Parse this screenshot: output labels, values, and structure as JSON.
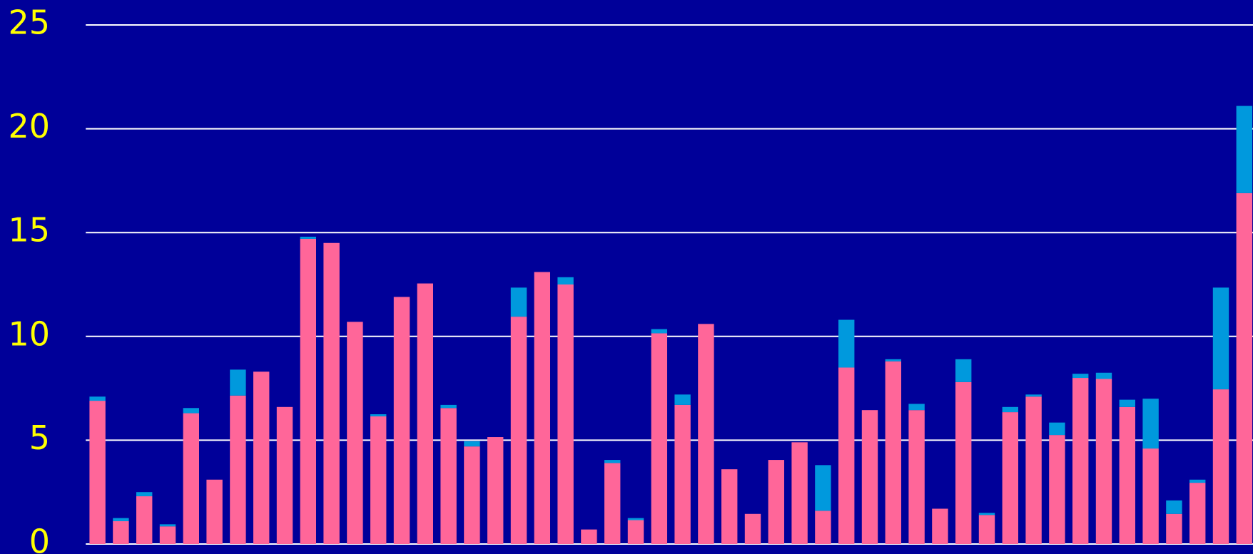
{
  "chart_data": {
    "type": "stacked_bar",
    "categories": [
      null,
      null,
      null,
      null,
      null,
      null,
      null,
      null,
      null,
      null,
      null,
      null,
      null,
      null,
      null,
      null,
      null,
      null,
      null,
      null,
      null,
      null,
      null,
      null,
      null,
      null,
      null,
      null,
      null,
      null,
      null,
      null,
      null,
      null,
      null,
      null,
      null,
      null,
      null,
      null,
      null,
      null,
      null,
      null,
      null,
      null,
      null,
      null,
      null,
      null
    ],
    "series": [
      {
        "color": "#ff6699",
        "values": [
          6.9,
          1.1,
          2.3,
          0.85,
          6.3,
          3.1,
          7.15,
          8.3,
          6.6,
          14.7,
          14.5,
          10.7,
          6.15,
          11.9,
          12.55,
          6.55,
          4.7,
          5.15,
          10.95,
          13.1,
          12.5,
          0.7,
          3.9,
          1.15,
          10.15,
          6.7,
          10.6,
          3.6,
          1.45,
          4.05,
          4.9,
          1.6,
          8.5,
          6.45,
          8.8,
          6.45,
          1.7,
          7.8,
          1.4,
          6.35,
          7.1,
          5.25,
          8.0,
          7.95,
          6.6,
          4.6,
          1.45,
          2.95,
          7.45,
          16.9
        ]
      },
      {
        "color": "#0099dd",
        "values": [
          0.2,
          0.15,
          0.2,
          0.1,
          0.25,
          0,
          1.25,
          0,
          0,
          0.1,
          0,
          0,
          0.1,
          0,
          0,
          0.15,
          0.25,
          0,
          1.4,
          0,
          0.35,
          0,
          0.15,
          0.1,
          0.2,
          0.5,
          0,
          0,
          0,
          0,
          0,
          2.2,
          2.3,
          0,
          0.1,
          0.3,
          0,
          1.1,
          0.1,
          0.25,
          0.1,
          0.6,
          0.2,
          0.3,
          0.35,
          2.4,
          0.65,
          0.15,
          4.9,
          4.2
        ]
      }
    ],
    "ylim": [
      0,
      25
    ],
    "yticks": [
      0,
      5,
      10,
      15,
      20,
      25
    ],
    "grid": true
  }
}
